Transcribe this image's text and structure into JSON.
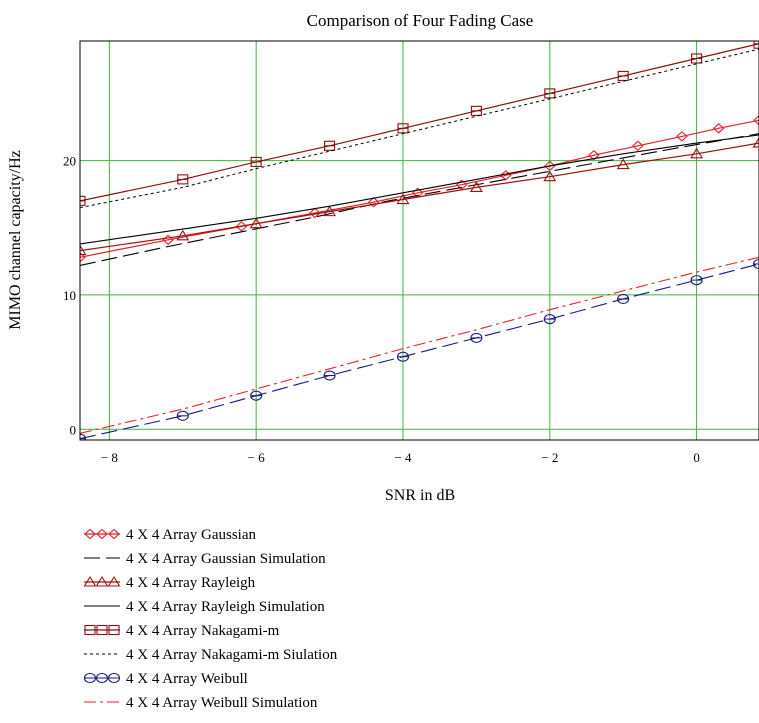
{
  "chart_data": {
    "type": "line",
    "title": "Comparison of Four  Fading Case",
    "xlabel": "SNR in dB",
    "ylabel": "MIMO channel capacity/Hz",
    "xlim": [
      -8.4,
      0.85
    ],
    "ylim": [
      -0.8,
      28.9
    ],
    "grid": true,
    "legend_position": "bottom",
    "x_ticks": [
      {
        "value": -8,
        "label": "− 8"
      },
      {
        "value": -6,
        "label": "− 6"
      },
      {
        "value": -4,
        "label": "− 4"
      },
      {
        "value": -2,
        "label": "− 2"
      },
      {
        "value": 0,
        "label": "0"
      }
    ],
    "y_ticks": [
      {
        "value": 0,
        "label": "0"
      },
      {
        "value": 10,
        "label": "10"
      },
      {
        "value": 20,
        "label": "20"
      }
    ],
    "series": [
      {
        "name": "4 X 4  Array Gaussian",
        "color": "#e8202a",
        "dash": "none",
        "marker": "diamond",
        "width": 1.2,
        "x": [
          -8.4,
          -7.2,
          -6.2,
          -5.2,
          -4.4,
          -3.8,
          -3.2,
          -2.6,
          -2.0,
          -1.4,
          -0.8,
          -0.2,
          0.3,
          0.85
        ],
        "y": [
          12.8,
          14.1,
          15.1,
          16.1,
          16.9,
          17.6,
          18.2,
          18.9,
          19.6,
          20.4,
          21.1,
          21.8,
          22.4,
          23.0
        ]
      },
      {
        "name": "4 X 4  Array Gaussian Simulation",
        "color": "#000000",
        "dash": "16,6",
        "marker": "none",
        "width": 1.1,
        "x": [
          -8.4,
          -7.2,
          -6.2,
          -5.2,
          -4.2,
          -3.2,
          -2.2,
          -1.2,
          -0.2,
          0.85
        ],
        "y": [
          12.2,
          13.6,
          14.7,
          15.8,
          17.0,
          18.0,
          19.0,
          20.0,
          21.0,
          22.0
        ]
      },
      {
        "name": "4 X 4  Array Rayleigh",
        "color": "#a01010",
        "dash": "none",
        "marker": "triangle",
        "width": 1.2,
        "x": [
          -8.4,
          -7.0,
          -6.0,
          -5.0,
          -4.0,
          -3.0,
          -2.0,
          -1.0,
          0.0,
          0.85
        ],
        "y": [
          13.3,
          14.4,
          15.3,
          16.2,
          17.1,
          18.0,
          18.8,
          19.7,
          20.5,
          21.3
        ]
      },
      {
        "name": "4 X 4  Array Rayleigh Simulation",
        "color": "#000000",
        "dash": "none",
        "marker": "none",
        "width": 1.1,
        "x": [
          -8.4,
          -7.0,
          -6.0,
          -5.0,
          -4.0,
          -3.0,
          -2.0,
          -1.0,
          0.0,
          0.85
        ],
        "y": [
          13.8,
          14.9,
          15.7,
          16.6,
          17.6,
          18.6,
          19.6,
          20.5,
          21.3,
          21.9
        ]
      },
      {
        "name": "4 X 4  Array Nakagami-m",
        "color": "#8b0f10",
        "dash": "none",
        "marker": "square",
        "width": 1.2,
        "x": [
          -8.4,
          -7.0,
          -6.0,
          -5.0,
          -4.0,
          -3.0,
          -2.0,
          -1.0,
          0.0,
          0.85
        ],
        "y": [
          17.0,
          18.6,
          19.9,
          21.1,
          22.4,
          23.7,
          25.0,
          26.3,
          27.6,
          28.7
        ]
      },
      {
        "name": "4 X 4  Array Nakagami-m Siulation",
        "color": "#000000",
        "dash": "3,3",
        "marker": "none",
        "width": 1.0,
        "x": [
          -8.4,
          -7.0,
          -6.0,
          -5.0,
          -4.0,
          -3.0,
          -2.0,
          -1.0,
          0.0,
          0.85
        ],
        "y": [
          16.5,
          18.0,
          19.4,
          20.7,
          22.0,
          23.3,
          24.6,
          25.9,
          27.2,
          28.3
        ]
      },
      {
        "name": "4 X 4  Array Weibull",
        "color": "#1a1a80",
        "dash": "16,6",
        "marker": "circle",
        "width": 1.1,
        "x": [
          -8.4,
          -7.0,
          -6.0,
          -5.0,
          -4.0,
          -3.0,
          -2.0,
          -1.0,
          0.0,
          0.85
        ],
        "y": [
          -0.7,
          1.0,
          2.5,
          4.0,
          5.4,
          6.8,
          8.2,
          9.7,
          11.1,
          12.3
        ]
      },
      {
        "name": "4 X 4  Array Weibull Simulation",
        "color": "#e8202a",
        "dash": "12,4,3,4",
        "marker": "none",
        "width": 1.1,
        "x": [
          -8.4,
          -7.0,
          -6.0,
          -5.0,
          -4.0,
          -3.0,
          -2.0,
          -1.0,
          0.0,
          0.85
        ],
        "y": [
          -0.3,
          1.5,
          3.0,
          4.5,
          6.0,
          7.4,
          8.9,
          10.3,
          11.7,
          12.8
        ]
      }
    ]
  }
}
